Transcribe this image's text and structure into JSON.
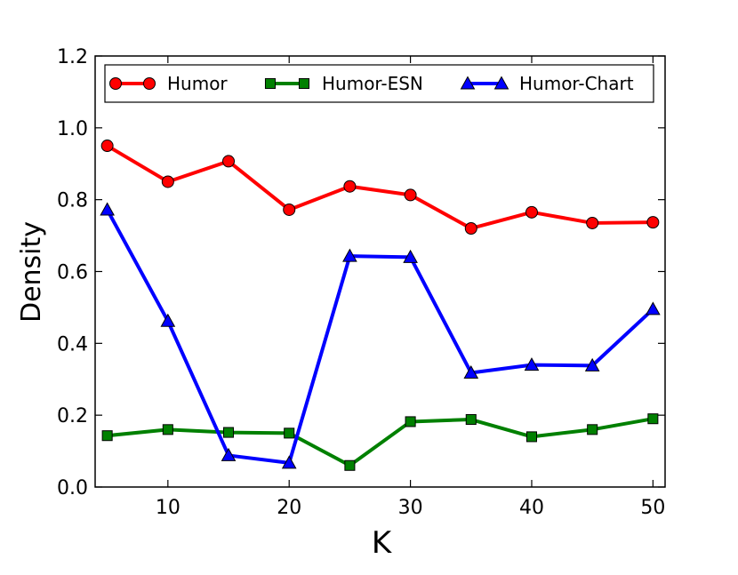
{
  "chart_data": {
    "type": "line",
    "xlabel": "K",
    "ylabel": "Density",
    "xlim": [
      4,
      51
    ],
    "ylim": [
      0.0,
      1.2
    ],
    "xticks": [
      10,
      20,
      30,
      40,
      50
    ],
    "xtick_labels": [
      "10",
      "20",
      "30",
      "40",
      "50"
    ],
    "yticks": [
      0.0,
      0.2,
      0.4,
      0.6,
      0.8,
      1.0,
      1.2
    ],
    "ytick_labels": [
      "0.0",
      "0.2",
      "0.4",
      "0.6",
      "0.8",
      "1.0",
      "1.2"
    ],
    "grid": false,
    "legend_position": "top",
    "x": [
      5,
      10,
      15,
      20,
      25,
      30,
      35,
      40,
      45,
      50
    ],
    "series": [
      {
        "name": "Humor",
        "color": "#ff0000",
        "marker": "circle",
        "values": [
          0.95,
          0.85,
          0.907,
          0.772,
          0.837,
          0.813,
          0.72,
          0.765,
          0.735,
          0.737
        ]
      },
      {
        "name": "Humor-ESN",
        "color": "#008000",
        "marker": "square",
        "values": [
          0.143,
          0.16,
          0.152,
          0.15,
          0.06,
          0.182,
          0.188,
          0.14,
          0.16,
          0.19
        ]
      },
      {
        "name": "Humor-Chart",
        "color": "#0000ff",
        "marker": "triangle",
        "values": [
          0.772,
          0.462,
          0.088,
          0.067,
          0.643,
          0.64,
          0.318,
          0.34,
          0.338,
          0.495
        ]
      }
    ]
  }
}
